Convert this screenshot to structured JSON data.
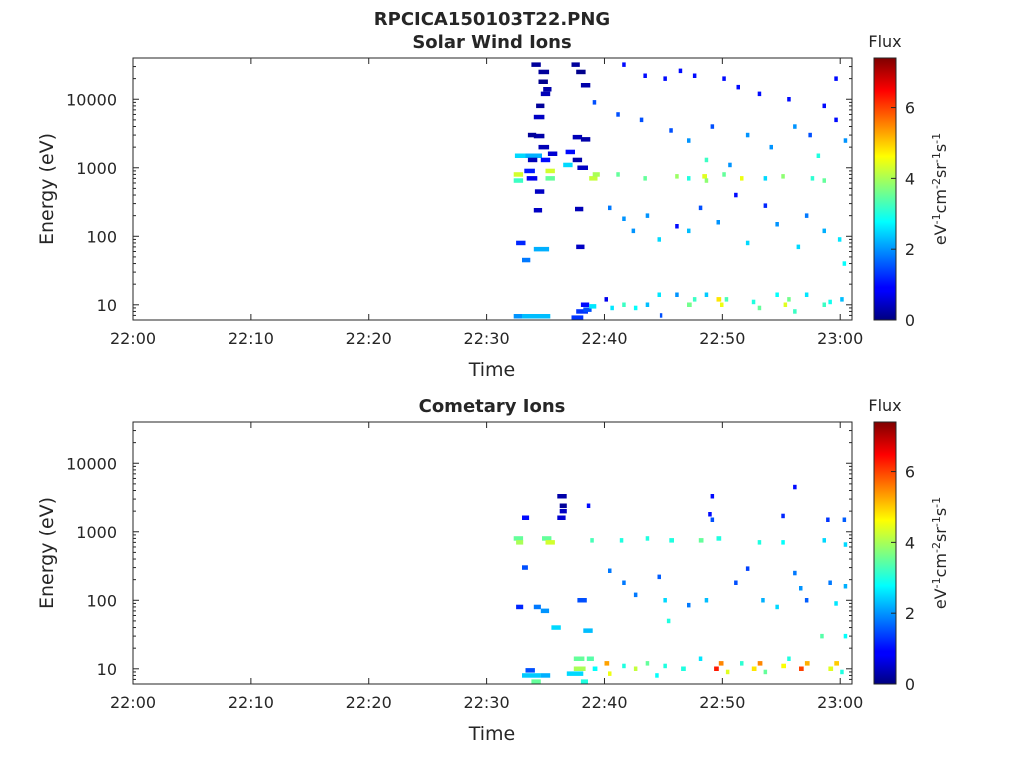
{
  "figure": {
    "title": "RPCICA150103T22.PNG"
  },
  "chart_data": [
    {
      "type": "heatmap",
      "title": "Solar Wind Ions",
      "xlabel": "Time",
      "ylabel": "Energy (eV)",
      "x_ticks": [
        "22:00",
        "22:10",
        "22:20",
        "22:30",
        "22:40",
        "22:50",
        "23:00"
      ],
      "x_tick_minutes": [
        0,
        10,
        20,
        30,
        40,
        50,
        60
      ],
      "xlim_minutes": [
        0,
        61
      ],
      "y_scale": "log",
      "ylim": [
        6,
        40000
      ],
      "y_ticks": [
        "10",
        "100",
        "1000",
        "10000"
      ],
      "y_tick_values": [
        10,
        100,
        1000,
        10000
      ],
      "colorbar": {
        "title": "Flux",
        "label": "eV-1cm-2sr-1s-1",
        "range": [
          0,
          7.4
        ],
        "ticks": [
          "0",
          "2",
          "4",
          "6"
        ],
        "tick_values": [
          0,
          2,
          4,
          6
        ],
        "colormap": "jet"
      },
      "cells": [
        [
          32.3,
          6.8,
          1.5,
          2
        ],
        [
          32.5,
          6.8,
          0.8,
          2
        ],
        [
          33.0,
          6.8,
          2.4,
          2.3
        ],
        [
          32.5,
          80,
          0.8,
          1.2
        ],
        [
          33.0,
          45,
          0.7,
          1.8
        ],
        [
          34.0,
          65,
          1.3,
          2.2
        ],
        [
          33.1,
          1500,
          1.6,
          2.2
        ],
        [
          32.4,
          1500,
          0.9,
          2.5
        ],
        [
          32.3,
          800,
          0.8,
          4.3
        ],
        [
          32.3,
          650,
          0.8,
          3.2
        ],
        [
          33.2,
          900,
          0.9,
          1.1
        ],
        [
          33.4,
          700,
          0.9,
          0.8
        ],
        [
          34.1,
          450,
          0.8,
          0.5
        ],
        [
          33.5,
          1300,
          0.8,
          0.4
        ],
        [
          34.0,
          2900,
          0.9,
          0.3
        ],
        [
          34.6,
          1300,
          0.8,
          1.0
        ],
        [
          34.4,
          2000,
          0.9,
          0.4
        ],
        [
          35.2,
          1600,
          0.8,
          0.6
        ],
        [
          35.0,
          900,
          0.8,
          4.3
        ],
        [
          35.0,
          700,
          0.8,
          3.5
        ],
        [
          33.5,
          3000,
          0.7,
          0.2
        ],
        [
          34.0,
          5500,
          0.9,
          0.5
        ],
        [
          34.2,
          8000,
          0.7,
          0.2
        ],
        [
          34.6,
          12000,
          0.8,
          0.4
        ],
        [
          33.8,
          32000,
          0.8,
          0.2
        ],
        [
          34.4,
          25000,
          0.9,
          0.2
        ],
        [
          34.4,
          18000,
          0.8,
          0.1
        ],
        [
          34.8,
          14000,
          0.7,
          0.3
        ],
        [
          34.0,
          240,
          0.7,
          0.5
        ],
        [
          36.5,
          1100,
          0.8,
          2.5
        ],
        [
          36.7,
          1700,
          0.8,
          1.0
        ],
        [
          37.3,
          1300,
          0.8,
          0.3
        ],
        [
          37.7,
          1000,
          0.9,
          0.5
        ],
        [
          37.3,
          2800,
          0.8,
          0.4
        ],
        [
          38.0,
          2600,
          0.8,
          0.3
        ],
        [
          37.2,
          32000,
          0.7,
          0.2
        ],
        [
          37.6,
          25000,
          0.8,
          0.1
        ],
        [
          38.0,
          16000,
          0.8,
          0.3
        ],
        [
          37.5,
          250,
          0.7,
          0.4
        ],
        [
          37.6,
          70,
          0.7,
          0.5
        ],
        [
          37.2,
          6.5,
          1.0,
          1.3
        ],
        [
          37.6,
          8.0,
          1.0,
          1.3
        ],
        [
          38.0,
          10,
          0.7,
          1.0
        ],
        [
          38.2,
          8.5,
          0.7,
          1.5
        ],
        [
          38.7,
          9.5,
          0.6,
          2.6
        ],
        [
          38.7,
          700,
          0.7,
          4.2
        ],
        [
          39.0,
          800,
          0.6,
          4.0
        ],
        [
          40.0,
          12,
          0.3,
          0.8
        ],
        [
          40.5,
          9,
          0.3,
          2.6
        ],
        [
          41.5,
          10,
          0.3,
          3.2
        ],
        [
          42.5,
          9,
          0.3,
          2.8
        ],
        [
          43.5,
          10,
          0.3,
          2.3
        ],
        [
          44.5,
          14,
          0.3,
          2.6
        ],
        [
          44.7,
          7,
          0.2,
          1.5
        ],
        [
          46.0,
          14,
          0.3,
          2.0
        ],
        [
          47.0,
          10,
          0.4,
          3.6
        ],
        [
          47.5,
          12,
          0.3,
          3.2
        ],
        [
          48.5,
          14,
          0.3,
          2.4
        ],
        [
          49.5,
          12,
          0.4,
          4.8
        ],
        [
          49.8,
          10,
          0.3,
          4.5
        ],
        [
          50.2,
          12,
          0.3,
          3.3
        ],
        [
          52.5,
          11,
          0.3,
          3.0
        ],
        [
          53.0,
          9,
          0.3,
          3.5
        ],
        [
          54.5,
          14,
          0.3,
          2.8
        ],
        [
          55.2,
          10,
          0.3,
          4.4
        ],
        [
          55.5,
          12,
          0.3,
          3.6
        ],
        [
          56.0,
          8,
          0.3,
          3.2
        ],
        [
          57.0,
          14,
          0.3,
          2.6
        ],
        [
          58.5,
          10,
          0.3,
          3.2
        ],
        [
          59.0,
          11,
          0.3,
          2.9
        ],
        [
          60.0,
          12,
          0.3,
          2.3
        ],
        [
          41.0,
          800,
          0.3,
          3.5
        ],
        [
          43.3,
          700,
          0.3,
          3.5
        ],
        [
          46.0,
          750,
          0.3,
          3.9
        ],
        [
          47.0,
          700,
          0.3,
          3.0
        ],
        [
          48.3,
          750,
          0.4,
          4.4
        ],
        [
          48.5,
          650,
          0.3,
          3.8
        ],
        [
          50.0,
          800,
          0.3,
          3.5
        ],
        [
          51.5,
          700,
          0.3,
          4.5
        ],
        [
          53.5,
          700,
          0.3,
          2.5
        ],
        [
          55.0,
          750,
          0.3,
          3.8
        ],
        [
          57.5,
          700,
          0.3,
          3.1
        ],
        [
          58.5,
          650,
          0.3,
          3.5
        ],
        [
          48.5,
          1300,
          0.3,
          3.2
        ],
        [
          50.5,
          1100,
          0.3,
          2.0
        ],
        [
          58.0,
          1500,
          0.3,
          3.0
        ],
        [
          39.5,
          45000,
          0.3,
          1.0
        ],
        [
          41.5,
          32000,
          0.3,
          1.0
        ],
        [
          43.3,
          22000,
          0.3,
          1.0
        ],
        [
          45.0,
          20000,
          0.3,
          1.0
        ],
        [
          46.3,
          26000,
          0.3,
          1.0
        ],
        [
          47.5,
          22000,
          0.3,
          1.0
        ],
        [
          50.0,
          20000,
          0.3,
          1.0
        ],
        [
          51.2,
          15000,
          0.3,
          1.0
        ],
        [
          53.0,
          12000,
          0.3,
          1.0
        ],
        [
          55.5,
          10000,
          0.3,
          1.0
        ],
        [
          58.5,
          8000,
          0.3,
          1.0
        ],
        [
          59.5,
          20000,
          0.3,
          1.0
        ],
        [
          39.0,
          9000,
          0.3,
          1.5
        ],
        [
          41.0,
          6000,
          0.3,
          1.5
        ],
        [
          43.0,
          5000,
          0.3,
          1.5
        ],
        [
          45.5,
          3500,
          0.3,
          1.5
        ],
        [
          47.0,
          2500,
          0.3,
          2.0
        ],
        [
          49.0,
          4000,
          0.3,
          1.5
        ],
        [
          52.0,
          3000,
          0.3,
          2.0
        ],
        [
          54.0,
          2000,
          0.3,
          2.0
        ],
        [
          56.0,
          4000,
          0.3,
          2.0
        ],
        [
          57.3,
          3000,
          0.3,
          1.5
        ],
        [
          59.5,
          5000,
          0.3,
          1.0
        ],
        [
          60.3,
          2500,
          0.3,
          2.0
        ],
        [
          40.3,
          260,
          0.3,
          1.8
        ],
        [
          41.5,
          180,
          0.3,
          2.0
        ],
        [
          42.3,
          120,
          0.3,
          2.0
        ],
        [
          43.5,
          200,
          0.3,
          2.0
        ],
        [
          44.5,
          90,
          0.3,
          2.5
        ],
        [
          46.0,
          140,
          0.3,
          1.0
        ],
        [
          47.0,
          120,
          0.3,
          2.3
        ],
        [
          48.0,
          260,
          0.3,
          1.5
        ],
        [
          49.5,
          160,
          0.3,
          2.0
        ],
        [
          51.0,
          400,
          0.3,
          1.0
        ],
        [
          52.0,
          80,
          0.3,
          2.5
        ],
        [
          53.5,
          280,
          0.3,
          1.2
        ],
        [
          54.5,
          150,
          0.3,
          2.0
        ],
        [
          56.3,
          70,
          0.3,
          2.5
        ],
        [
          57.0,
          200,
          0.3,
          1.8
        ],
        [
          58.5,
          120,
          0.3,
          2.2
        ],
        [
          59.8,
          90,
          0.3,
          2.6
        ],
        [
          60.2,
          40,
          0.3,
          2.8
        ]
      ]
    },
    {
      "type": "heatmap",
      "title": "Cometary Ions",
      "xlabel": "Time",
      "ylabel": "Energy (eV)",
      "x_ticks": [
        "22:00",
        "22:10",
        "22:20",
        "22:30",
        "22:40",
        "22:50",
        "23:00"
      ],
      "x_tick_minutes": [
        0,
        10,
        20,
        30,
        40,
        50,
        60
      ],
      "xlim_minutes": [
        0,
        61
      ],
      "y_scale": "log",
      "ylim": [
        6,
        40000
      ],
      "y_ticks": [
        "10",
        "100",
        "1000",
        "10000"
      ],
      "y_tick_values": [
        10,
        100,
        1000,
        10000
      ],
      "colorbar": {
        "title": "Flux",
        "label": "eV-1cm-2sr-1s-1",
        "range": [
          0,
          7.4
        ],
        "ticks": [
          "0",
          "2",
          "4",
          "6"
        ],
        "tick_values": [
          0,
          2,
          4,
          6
        ],
        "colormap": "jet"
      },
      "cells": [
        [
          33.0,
          8.0,
          1.6,
          2.4
        ],
        [
          33.3,
          9.5,
          0.8,
          1.5
        ],
        [
          33.8,
          6.5,
          0.8,
          3.5
        ],
        [
          34.6,
          8,
          0.8,
          2.2
        ],
        [
          36.8,
          8.5,
          1.4,
          2.5
        ],
        [
          37.4,
          10,
          1.0,
          4.0
        ],
        [
          37.4,
          14,
          0.9,
          3.5
        ],
        [
          38.0,
          6.5,
          0.6,
          3.0
        ],
        [
          38.5,
          14,
          0.6,
          3.4
        ],
        [
          39.0,
          10,
          0.4,
          2.8
        ],
        [
          40.0,
          12,
          0.4,
          5.3
        ],
        [
          40.3,
          8.5,
          0.3,
          4.5
        ],
        [
          41.5,
          11,
          0.3,
          3.0
        ],
        [
          42.5,
          10,
          0.3,
          4.2
        ],
        [
          43.5,
          12,
          0.3,
          3.5
        ],
        [
          44.3,
          8,
          0.3,
          2.8
        ],
        [
          45.0,
          11,
          0.3,
          3.0
        ],
        [
          46.5,
          10,
          0.4,
          3.0
        ],
        [
          48.0,
          14,
          0.3,
          2.6
        ],
        [
          49.3,
          10,
          0.4,
          6.3
        ],
        [
          49.7,
          12,
          0.4,
          5.5
        ],
        [
          50.3,
          9,
          0.3,
          4.4
        ],
        [
          51.5,
          12,
          0.3,
          3.1
        ],
        [
          52.5,
          10,
          0.4,
          4.8
        ],
        [
          53.0,
          12,
          0.4,
          5.5
        ],
        [
          53.5,
          9,
          0.3,
          3.5
        ],
        [
          55.0,
          11,
          0.4,
          4.6
        ],
        [
          55.5,
          14,
          0.3,
          3.0
        ],
        [
          56.5,
          10,
          0.4,
          6.0
        ],
        [
          57.0,
          12,
          0.4,
          5.2
        ],
        [
          59.0,
          10,
          0.4,
          4.4
        ],
        [
          59.5,
          12,
          0.4,
          5.0
        ],
        [
          60.0,
          9,
          0.3,
          3.0
        ],
        [
          32.3,
          800,
          0.8,
          3.5
        ],
        [
          32.5,
          700,
          0.6,
          4.0
        ],
        [
          34.7,
          800,
          0.8,
          3.5
        ],
        [
          35.0,
          700,
          0.8,
          4.3
        ],
        [
          38.8,
          750,
          0.3,
          3.3
        ],
        [
          41.3,
          750,
          0.3,
          3.0
        ],
        [
          43.5,
          800,
          0.3,
          3.0
        ],
        [
          45.5,
          750,
          0.4,
          3.0
        ],
        [
          48.0,
          750,
          0.4,
          3.5
        ],
        [
          49.5,
          800,
          0.4,
          3.0
        ],
        [
          53.0,
          700,
          0.3,
          3.0
        ],
        [
          55.0,
          700,
          0.3,
          2.8
        ],
        [
          58.5,
          750,
          0.3,
          2.5
        ],
        [
          60.3,
          650,
          0.3,
          2.5
        ],
        [
          33.0,
          1600,
          0.6,
          1.0
        ],
        [
          36.0,
          1600,
          0.7,
          0.6
        ],
        [
          36.2,
          2400,
          0.6,
          0.2
        ],
        [
          36.0,
          3300,
          0.8,
          0.3
        ],
        [
          36.2,
          2000,
          0.6,
          0.5
        ],
        [
          38.5,
          2400,
          0.3,
          1.0
        ],
        [
          48.8,
          1800,
          0.3,
          1.0
        ],
        [
          49.0,
          1500,
          0.3,
          1.5
        ],
        [
          49.0,
          3300,
          0.3,
          1.0
        ],
        [
          55.0,
          1700,
          0.3,
          1.2
        ],
        [
          56.0,
          4500,
          0.3,
          1.0
        ],
        [
          58.8,
          1500,
          0.3,
          1.3
        ],
        [
          60.2,
          1500,
          0.3,
          1.6
        ],
        [
          33.0,
          300,
          0.5,
          1.5
        ],
        [
          32.5,
          80,
          0.6,
          1.2
        ],
        [
          34.0,
          80,
          0.6,
          1.8
        ],
        [
          34.6,
          70,
          0.7,
          2.0
        ],
        [
          35.5,
          40,
          0.8,
          2.5
        ],
        [
          37.7,
          100,
          0.8,
          1.5
        ],
        [
          38.2,
          36,
          0.8,
          2.3
        ],
        [
          40.3,
          270,
          0.3,
          1.8
        ],
        [
          41.5,
          180,
          0.3,
          1.8
        ],
        [
          42.5,
          120,
          0.3,
          1.8
        ],
        [
          44.5,
          220,
          0.3,
          1.6
        ],
        [
          45.0,
          100,
          0.3,
          2.5
        ],
        [
          45.3,
          50,
          0.3,
          3.0
        ],
        [
          47.0,
          85,
          0.3,
          1.8
        ],
        [
          48.5,
          100,
          0.3,
          2.3
        ],
        [
          51.0,
          180,
          0.3,
          1.5
        ],
        [
          52.0,
          290,
          0.3,
          1.4
        ],
        [
          53.3,
          100,
          0.3,
          2.2
        ],
        [
          54.5,
          80,
          0.3,
          2.5
        ],
        [
          56.0,
          250,
          0.3,
          1.8
        ],
        [
          56.5,
          150,
          0.3,
          2.0
        ],
        [
          57.0,
          100,
          0.3,
          1.6
        ],
        [
          58.3,
          30,
          0.3,
          3.4
        ],
        [
          59.0,
          180,
          0.3,
          1.8
        ],
        [
          59.5,
          90,
          0.3,
          2.6
        ],
        [
          60.3,
          160,
          0.3,
          2.2
        ],
        [
          60.3,
          30,
          0.3,
          2.8
        ]
      ]
    }
  ]
}
